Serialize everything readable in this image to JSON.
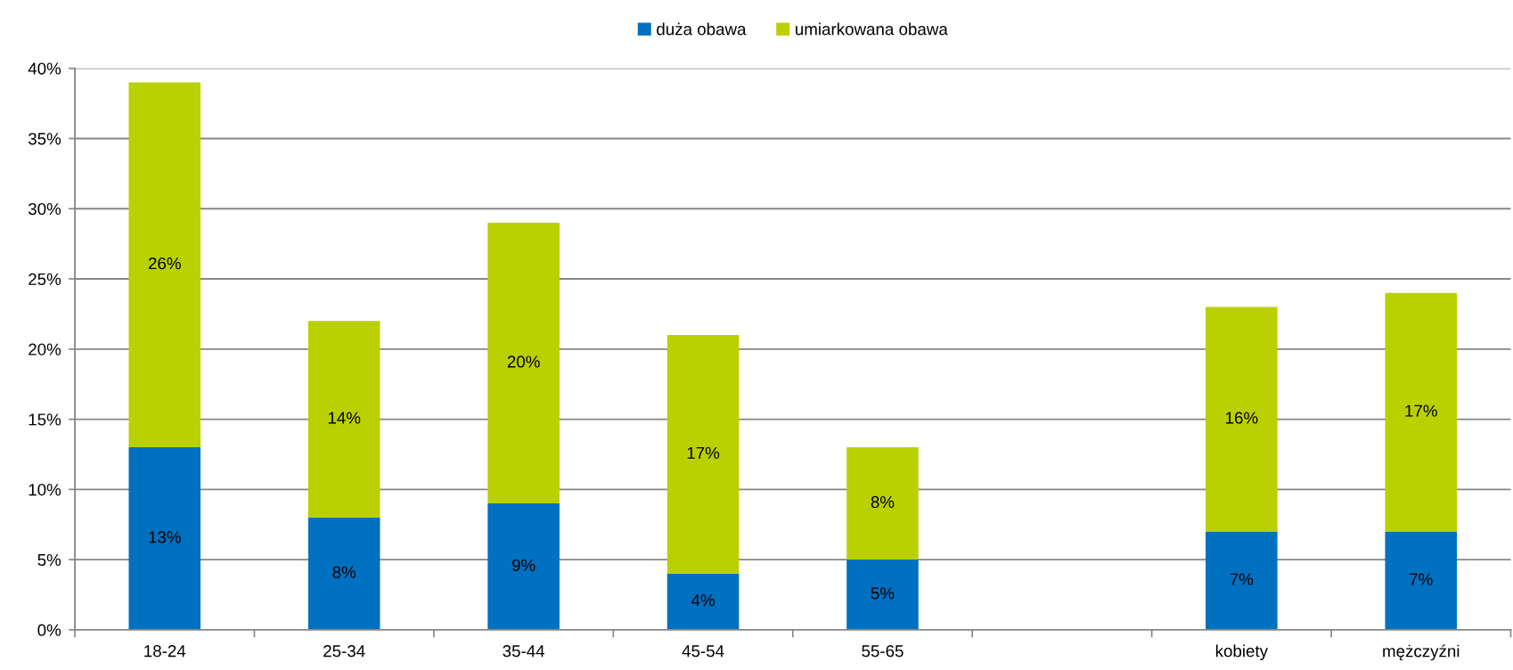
{
  "chart_data": {
    "type": "bar",
    "stacked": true,
    "categories": [
      "18-24",
      "25-34",
      "35-44",
      "45-54",
      "55-65",
      null,
      "kobiety",
      "mężczyźni"
    ],
    "series": [
      {
        "name": "duża obawa",
        "color": "#0070c0",
        "values": [
          13,
          8,
          9,
          4,
          5,
          null,
          7,
          7
        ],
        "value_labels": [
          "13%",
          "8%",
          "9%",
          "4%",
          "5%",
          null,
          "7%",
          "7%"
        ]
      },
      {
        "name": "umiarkowana obawa",
        "color": "#bad000",
        "values": [
          26,
          14,
          20,
          17,
          8,
          null,
          16,
          17
        ],
        "value_labels": [
          "26%",
          "14%",
          "20%",
          "17%",
          "8%",
          null,
          "16%",
          "17%"
        ]
      }
    ],
    "ylim": [
      0,
      40
    ],
    "yticks": [
      {
        "value": 0,
        "label": "0%"
      },
      {
        "value": 5,
        "label": "5%"
      },
      {
        "value": 10,
        "label": "10%"
      },
      {
        "value": 15,
        "label": "15%"
      },
      {
        "value": 20,
        "label": "20%"
      },
      {
        "value": 25,
        "label": "25%"
      },
      {
        "value": 30,
        "label": "30%"
      },
      {
        "value": 35,
        "label": "35%"
      },
      {
        "value": 40,
        "label": "40%"
      }
    ],
    "grid": "y",
    "legend": "top"
  }
}
